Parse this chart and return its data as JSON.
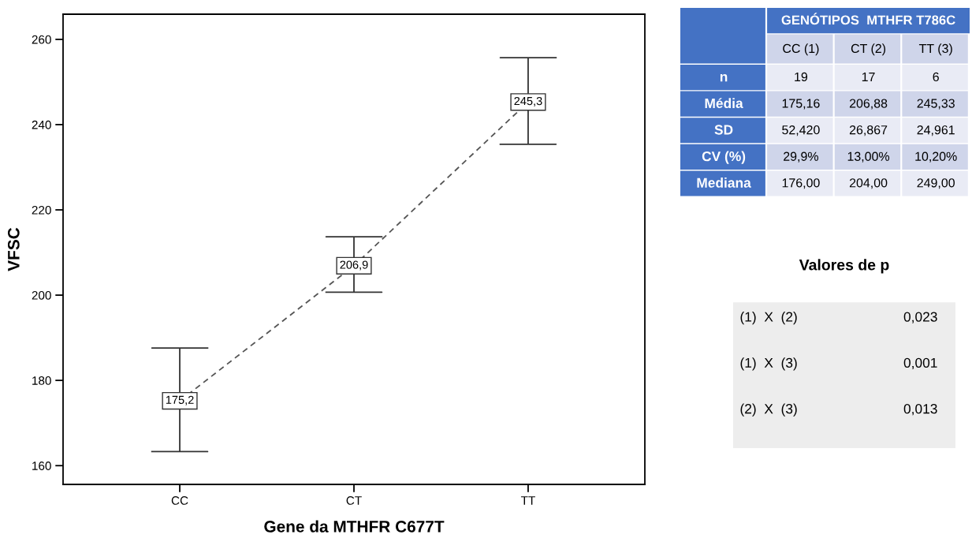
{
  "chart_data": [
    {
      "type": "line",
      "xlabel": "Gene da MTHFR C677T",
      "ylabel": "VFSC",
      "categories": [
        "CC",
        "CT",
        "TT"
      ],
      "series": [
        {
          "color": "#555555",
          "values": [
            175.2,
            206.9,
            245.3
          ],
          "value_labels": [
            "175,2",
            "206,9",
            "245,3"
          ],
          "errors": [
            [
              163.3,
              187.6
            ],
            [
              200.7,
              213.7
            ],
            [
              235.4,
              255.7
            ]
          ]
        }
      ],
      "ylim": [
        155.6,
        265.9
      ],
      "yticks": [
        160,
        180,
        200,
        220,
        240,
        260
      ],
      "grid": false,
      "legend": false,
      "marker": "square",
      "line_style": "dashed"
    },
    {
      "type": "other",
      "title": "GENÓTIPOS  MTHFR T786C",
      "color": "#4472c4",
      "categories": [
        "CC (1)",
        "CT (2)",
        "TT (3)"
      ],
      "y_categories": [
        "n",
        "Média",
        "SD",
        "CV (%)",
        "Mediana"
      ],
      "cell_labels": [
        [
          "19",
          "17",
          "6"
        ],
        [
          "175,16",
          "206,88",
          "245,33"
        ],
        [
          "52,420",
          "26,867",
          "24,961"
        ],
        [
          "29,9%",
          "13,00%",
          "10,20%"
        ],
        [
          "176,00",
          "204,00",
          "249,00"
        ]
      ]
    },
    {
      "type": "other",
      "title": "Valores de p",
      "color": "#ededed",
      "y_categories": [
        "(1)  X  (2)",
        "(1)  X  (3)",
        "(2)  X  (3)"
      ],
      "cell_labels": [
        [
          "0,023"
        ],
        [
          "0,001"
        ],
        [
          "0,013"
        ]
      ]
    }
  ]
}
